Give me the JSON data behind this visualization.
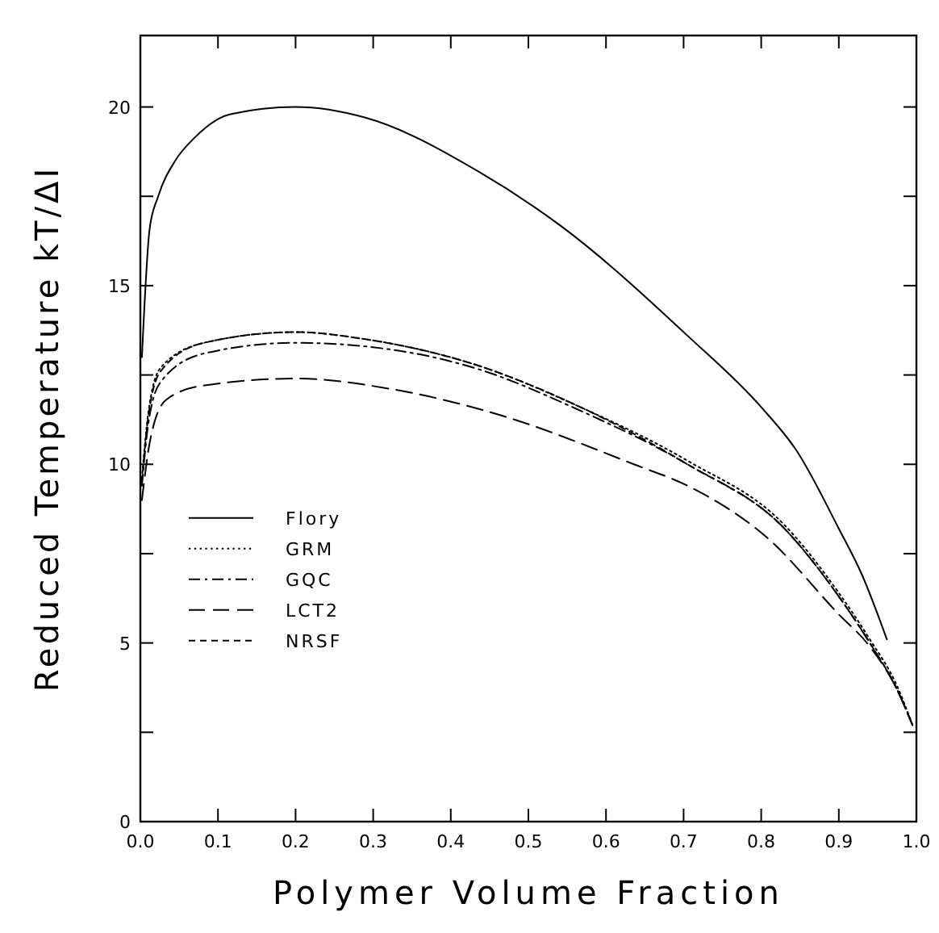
{
  "chart_data": {
    "type": "line",
    "xlabel": "Polymer Volume Fraction",
    "ylabel": "Reduced Temperature kT/ΔI",
    "xlim": [
      0,
      1
    ],
    "ylim": [
      0,
      22
    ],
    "xticks": [
      {
        "value": 0,
        "label": "0.0"
      },
      {
        "value": 0.1,
        "label": "0.1"
      },
      {
        "value": 0.2,
        "label": "0.2"
      },
      {
        "value": 0.3,
        "label": "0.3"
      },
      {
        "value": 0.4,
        "label": "0.4"
      },
      {
        "value": 0.5,
        "label": "0.5"
      },
      {
        "value": 0.6,
        "label": "0.6"
      },
      {
        "value": 0.7,
        "label": "0.7"
      },
      {
        "value": 0.8,
        "label": "0.8"
      },
      {
        "value": 0.9,
        "label": "0.9"
      },
      {
        "value": 1,
        "label": "1.0"
      }
    ],
    "yticks": [
      0,
      {
        "value": 2.5,
        "label": null
      },
      5,
      {
        "value": 7.5,
        "label": null
      },
      10,
      {
        "value": 12.5,
        "label": null
      },
      15,
      {
        "value": 17.5,
        "label": null
      },
      20
    ],
    "grid": false,
    "legend": "left",
    "series": [
      {
        "name": "Flory",
        "color": "#000000",
        "line_style": "solid",
        "x": [
          0.002,
          0.012,
          0.023,
          0.045,
          0.068,
          0.116,
          0.2,
          0.29,
          0.435,
          0.54,
          0.705,
          0.8,
          0.845,
          0.9,
          0.93,
          0.962
        ],
        "values": [
          13,
          16.6,
          17.5,
          18.5,
          19.1,
          19.8,
          20,
          19.7,
          18.2,
          16.7,
          13.6,
          11.6,
          10.4,
          8.2,
          6.9,
          5.1
        ]
      },
      {
        "name": "GRM",
        "color": "#000000",
        "line_style": "dotted",
        "x": [
          0.002,
          0.01,
          0.026,
          0.082,
          0.2,
          0.29,
          0.43,
          0.567,
          0.705,
          0.83,
          0.9,
          0.94,
          0.975,
          0.995
        ],
        "values": [
          9.6,
          11.4,
          12.7,
          13.4,
          13.7,
          13.5,
          12.8,
          11.6,
          10.1,
          8.3,
          6.4,
          5.1,
          3.8,
          2.7
        ]
      },
      {
        "name": "GQC",
        "color": "#000000",
        "line_style": "dashdot",
        "x": [
          0.002,
          0.01,
          0.026,
          0.082,
          0.2,
          0.29,
          0.43,
          0.567,
          0.705,
          0.83,
          0.9,
          0.94,
          0.975,
          0.995
        ],
        "values": [
          9.4,
          11.1,
          12.3,
          13.1,
          13.4,
          13.3,
          12.7,
          11.5,
          10,
          8.2,
          6.3,
          5,
          3.7,
          2.7
        ]
      },
      {
        "name": "LCT2",
        "color": "#000000",
        "line_style": "longdash",
        "x": [
          0.002,
          0.012,
          0.033,
          0.08,
          0.2,
          0.325,
          0.46,
          0.636,
          0.705,
          0.81,
          0.9,
          0.94,
          0.975,
          0.995
        ],
        "values": [
          9,
          10.6,
          11.8,
          12.2,
          12.4,
          12.1,
          11.4,
          10,
          9.4,
          7.9,
          5.8,
          4.9,
          3.7,
          2.7
        ]
      },
      {
        "name": "NRSF",
        "color": "#000000",
        "line_style": "dashed",
        "x": [
          0.002,
          0.01,
          0.026,
          0.082,
          0.2,
          0.29,
          0.43,
          0.567,
          0.705,
          0.83,
          0.9,
          0.94,
          0.975,
          0.995
        ],
        "values": [
          9.5,
          11.3,
          12.6,
          13.4,
          13.7,
          13.5,
          12.8,
          11.6,
          10,
          8.2,
          6.3,
          5,
          3.7,
          2.7
        ]
      }
    ]
  }
}
